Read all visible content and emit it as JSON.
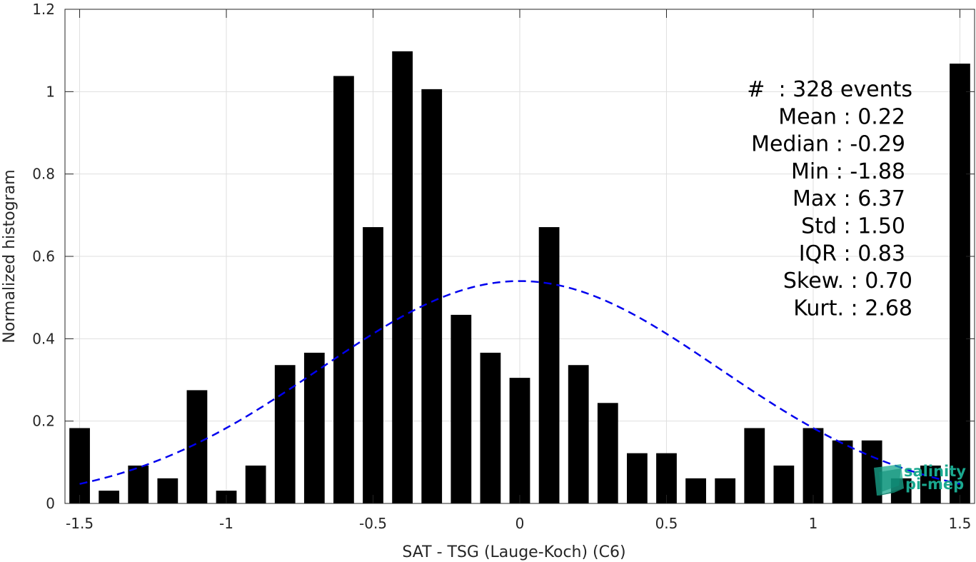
{
  "chart_data": {
    "type": "bar",
    "xlabel": "SAT - TSG (Lauge-Koch) (C6)",
    "ylabel": "Normalized histogram",
    "xlim": [
      -1.55,
      1.55
    ],
    "ylim": [
      0,
      1.2
    ],
    "grid": true,
    "bar_width": 0.07,
    "x": [
      -1.5,
      -1.4,
      -1.3,
      -1.2,
      -1.1,
      -1.0,
      -0.9,
      -0.8,
      -0.7,
      -0.6,
      -0.5,
      -0.4,
      -0.3,
      -0.2,
      -0.1,
      0.0,
      0.1,
      0.2,
      0.3,
      0.4,
      0.5,
      0.6,
      0.7,
      0.8,
      0.9,
      1.0,
      1.1,
      1.2,
      1.3,
      1.4,
      1.5
    ],
    "values": [
      0.183,
      0.031,
      0.092,
      0.061,
      0.275,
      0.031,
      0.092,
      0.336,
      0.366,
      1.038,
      0.671,
      1.098,
      1.006,
      0.458,
      0.366,
      0.305,
      0.671,
      0.336,
      0.244,
      0.122,
      0.122,
      0.061,
      0.061,
      0.183,
      0.092,
      0.183,
      0.153,
      0.153,
      0.061,
      0.092,
      1.068
    ],
    "x_ticks": [
      -1.5,
      -1,
      -0.5,
      0,
      0.5,
      1,
      1.5
    ],
    "x_tick_labels": [
      "-1.5",
      "-1",
      "-0.5",
      "0",
      "0.5",
      "1",
      "1.5"
    ],
    "y_ticks": [
      0,
      0.2,
      0.4,
      0.6,
      0.8,
      1,
      1.2
    ],
    "y_tick_labels": [
      "0",
      "0.2",
      "0.4",
      "0.6",
      "0.8",
      "1",
      "1.2"
    ],
    "fit_curve": {
      "type": "gaussian",
      "mean": 0,
      "peak": 0.54,
      "sigma": 0.68,
      "x_range": [
        -1.5,
        1.5
      ],
      "color": "#0000ee",
      "style": "dashed"
    },
    "bar_color": "#000000",
    "stats_text": [
      "#  : 328 events",
      "Mean : 0.22",
      "Median : -0.29",
      "Min : -1.88",
      "Max : 6.37",
      "Std : 1.50",
      "IQR : 0.83",
      "Skew. : 0.70",
      "Kurt. : 2.68"
    ]
  },
  "logo": {
    "line1": "salinity",
    "line2": "pi-mep",
    "color": "#1aa88f"
  }
}
